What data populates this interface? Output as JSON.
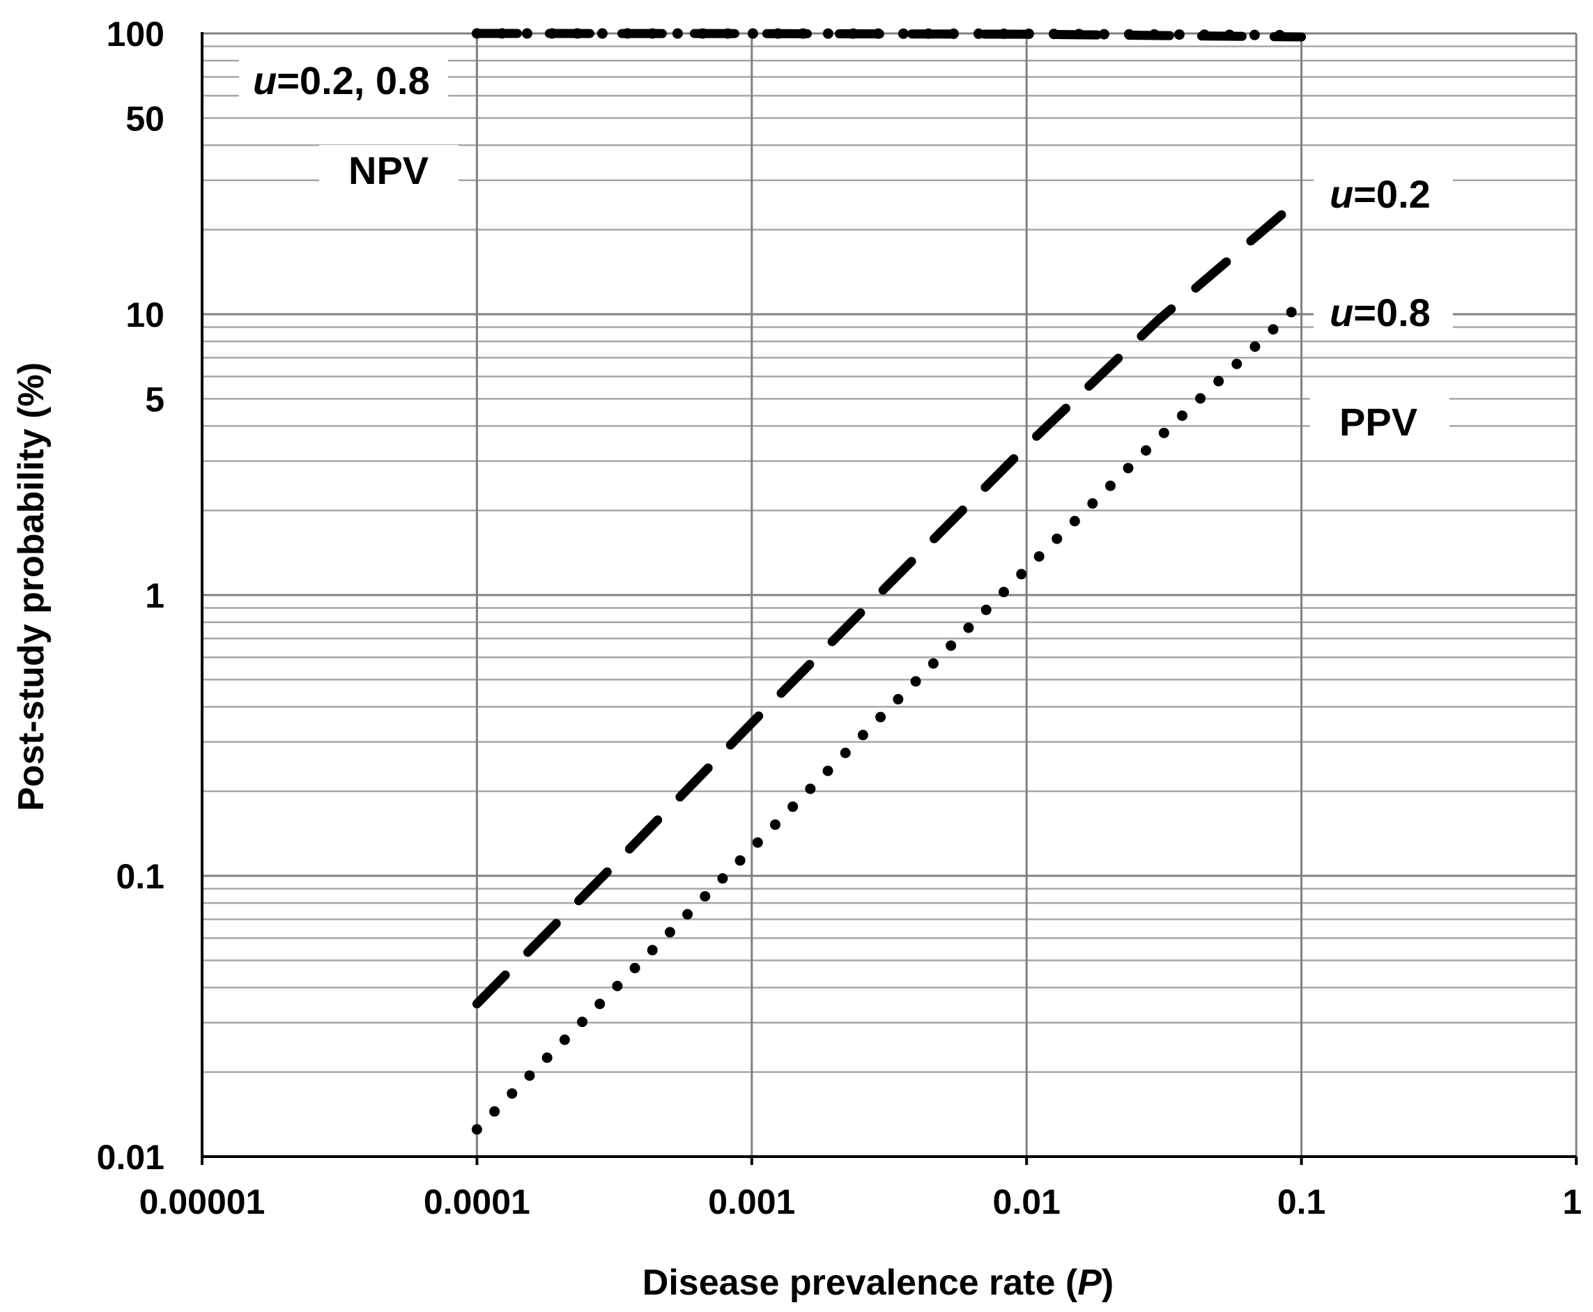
{
  "chart_data": {
    "type": "line",
    "title": "",
    "xlabel": "Disease prevalence rate (P)",
    "xlabel_parts": {
      "prefix": "Disease prevalence rate (",
      "var": "P",
      "suffix": ")"
    },
    "ylabel": "Post-study probability (%)",
    "xscale": "log",
    "yscale": "log",
    "xlim": [
      1e-05,
      1
    ],
    "ylim": [
      0.01,
      100
    ],
    "x_ticks": [
      1e-05,
      0.0001,
      0.001,
      0.01,
      0.1,
      1
    ],
    "x_tick_labels": [
      "0.00001",
      "0.0001",
      "0.001",
      "0.01",
      "0.1",
      "1"
    ],
    "y_ticks": [
      0.01,
      0.1,
      1,
      5,
      10,
      50,
      100
    ],
    "y_tick_labels": [
      "0.01",
      "0.1",
      "1",
      "5",
      "10",
      "50",
      "100"
    ],
    "grid": true,
    "series": [
      {
        "name": "PPV u=0.2",
        "style": "dashed",
        "x": [
          0.0001,
          0.0003,
          0.001,
          0.003,
          0.01,
          0.03,
          0.1
        ],
        "values": [
          0.035,
          0.104,
          0.35,
          1.04,
          3.4,
          9.5,
          26
        ]
      },
      {
        "name": "PPV u=0.8",
        "style": "dotted",
        "x": [
          0.0001,
          0.0003,
          0.001,
          0.003,
          0.01,
          0.03,
          0.1
        ],
        "values": [
          0.0125,
          0.0375,
          0.125,
          0.375,
          1.24,
          3.6,
          11
        ]
      },
      {
        "name": "NPV u=0.2",
        "style": "dashed",
        "x": [
          0.0001,
          0.001,
          0.01,
          0.1
        ],
        "values": [
          99.99,
          99.9,
          99.4,
          97.2
        ]
      },
      {
        "name": "NPV u=0.8",
        "style": "dotted",
        "x": [
          0.0001,
          0.001,
          0.01,
          0.1
        ],
        "values": [
          99.99,
          99.97,
          99.7,
          98.6
        ]
      }
    ],
    "annotations": {
      "npv_u": {
        "var": "u",
        "text": "=0.2, 0.8"
      },
      "npv": {
        "text": "NPV"
      },
      "u02": {
        "var": "u",
        "text": "=0.2"
      },
      "u08": {
        "var": "u",
        "text": "=0.8"
      },
      "ppv": {
        "text": "PPV"
      }
    }
  }
}
